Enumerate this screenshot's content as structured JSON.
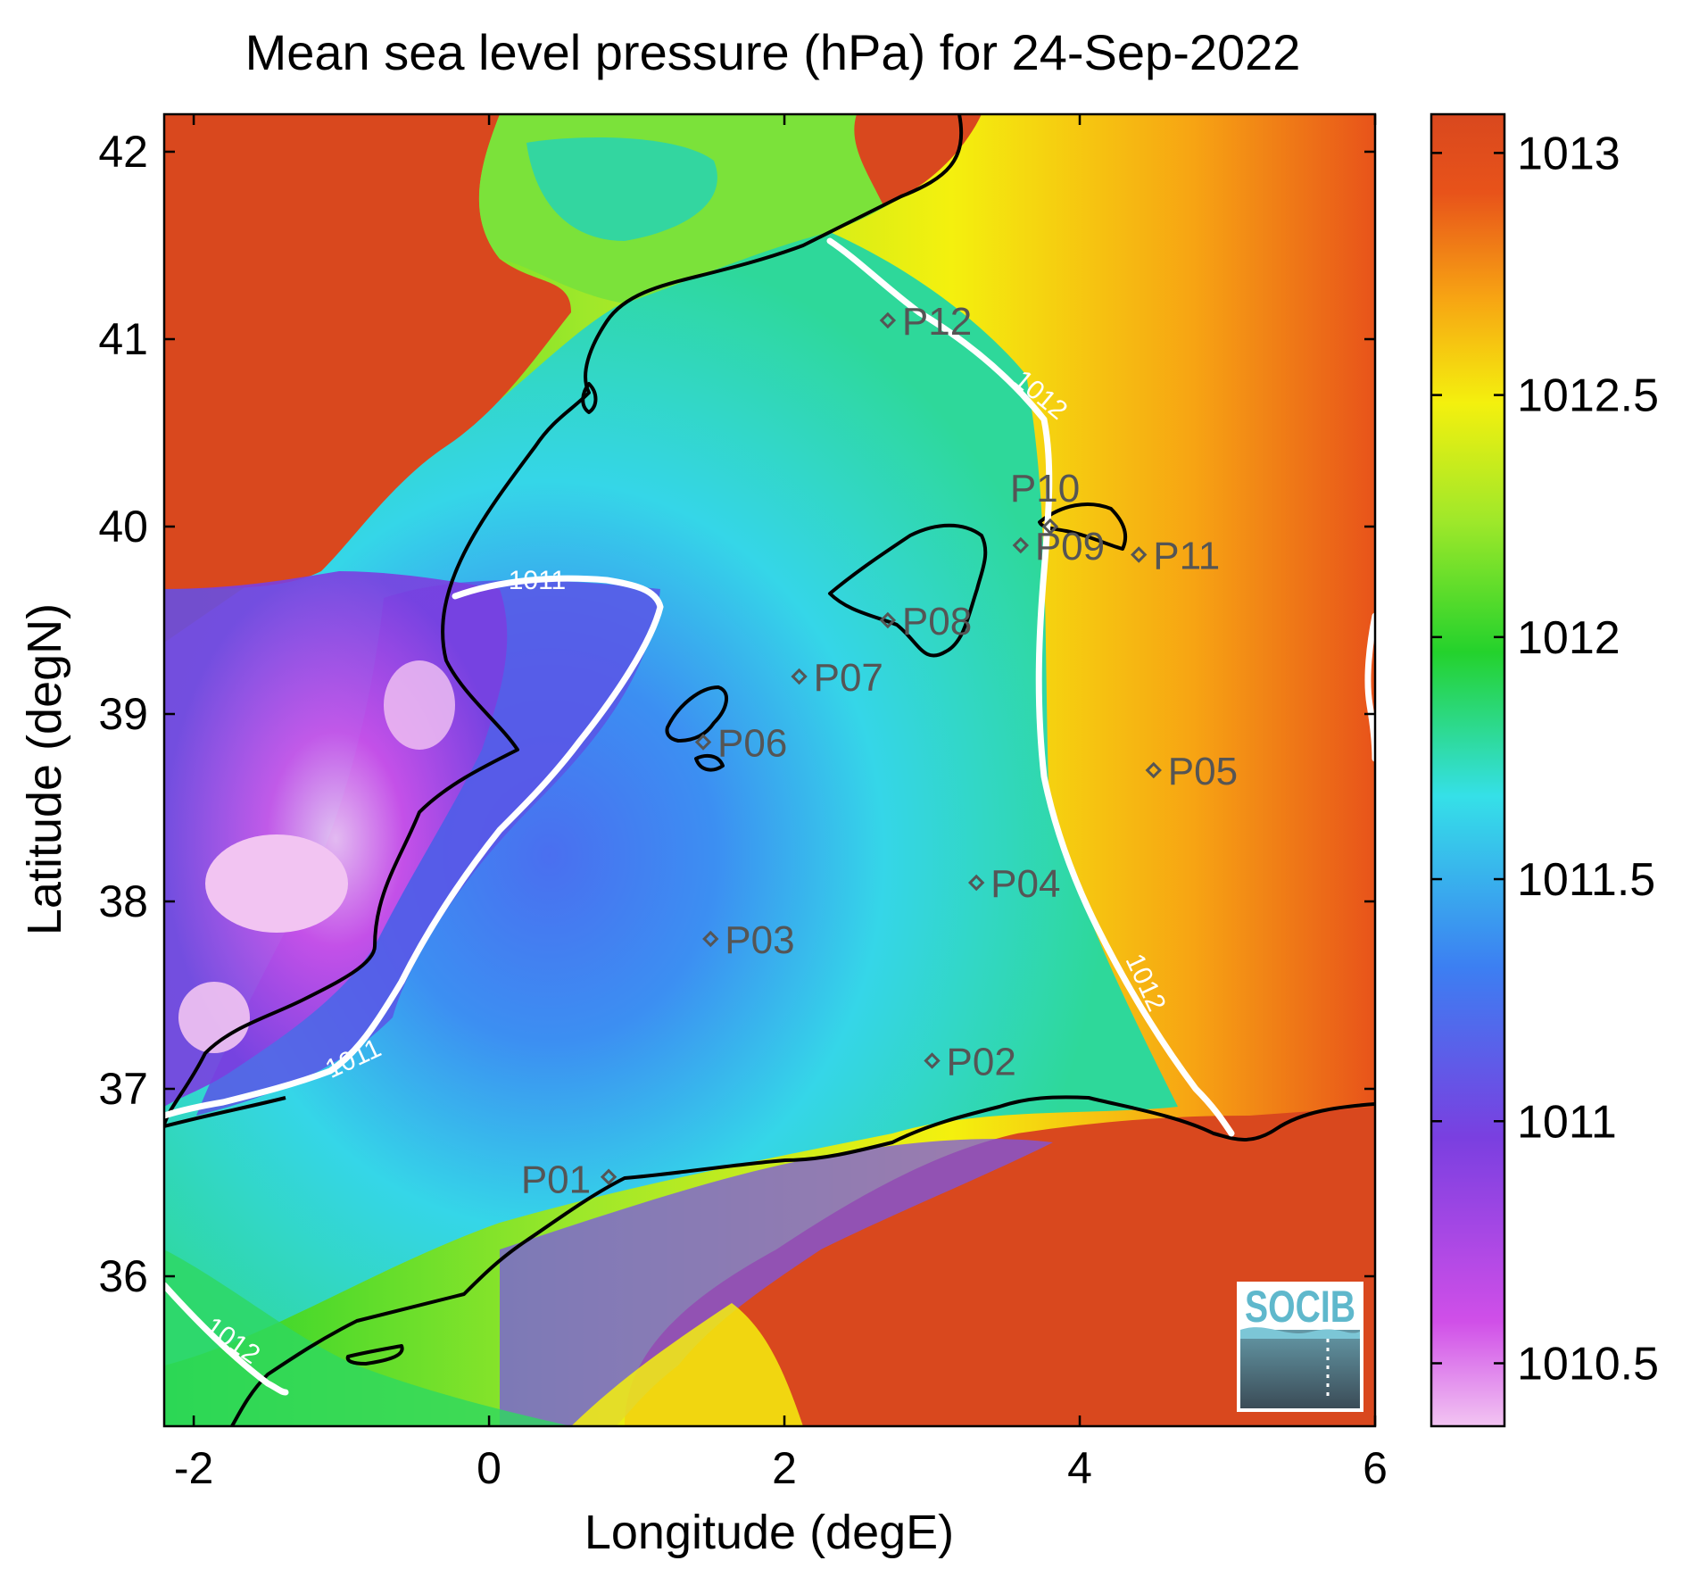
{
  "title": "Mean sea level pressure (hPa) for 24-Sep-2022",
  "x_axis": {
    "label": "Longitude (degE)",
    "range": [
      -2.2,
      6.0
    ],
    "ticks": [
      -2,
      0,
      2,
      4,
      6
    ],
    "tick_labels": [
      "-2",
      "0",
      "2",
      "4",
      "6"
    ]
  },
  "y_axis": {
    "label": "Latitude (degN)",
    "range": [
      35.2,
      42.2
    ],
    "ticks": [
      36,
      37,
      38,
      39,
      40,
      41,
      42
    ],
    "tick_labels": [
      "36",
      "37",
      "38",
      "39",
      "40",
      "41",
      "42"
    ]
  },
  "colorbar": {
    "range": [
      1010.37,
      1013.08
    ],
    "ticks": [
      1010.5,
      1011,
      1011.5,
      1012,
      1012.5,
      1013
    ],
    "tick_labels": [
      "1010.5",
      "1011",
      "1011.5",
      "1012",
      "1012.5",
      "1013"
    ],
    "colors": [
      "#f2c4f2",
      "#d04fe8",
      "#7a3fe0",
      "#3c7ff2",
      "#35e0e8",
      "#24d22c",
      "#9fe82a",
      "#f4f00e",
      "#f7a413",
      "#e8531a",
      "#d9481e"
    ]
  },
  "stations": [
    {
      "id": "P01",
      "lon": 0.81,
      "lat": 36.53
    },
    {
      "id": "P02",
      "lon": 3.0,
      "lat": 37.15
    },
    {
      "id": "P03",
      "lon": 1.5,
      "lat": 37.8
    },
    {
      "id": "P04",
      "lon": 3.3,
      "lat": 38.1
    },
    {
      "id": "P05",
      "lon": 4.5,
      "lat": 38.7
    },
    {
      "id": "P06",
      "lon": 1.45,
      "lat": 38.85
    },
    {
      "id": "P07",
      "lon": 2.1,
      "lat": 39.2
    },
    {
      "id": "P08",
      "lon": 2.7,
      "lat": 39.5
    },
    {
      "id": "P09",
      "lon": 3.6,
      "lat": 39.9
    },
    {
      "id": "P10",
      "lon": 3.8,
      "lat": 40.0
    },
    {
      "id": "P11",
      "lon": 4.4,
      "lat": 39.85
    },
    {
      "id": "P12",
      "lon": 2.7,
      "lat": 41.1
    }
  ],
  "contour_labels": [
    "1011",
    "1011",
    "1012",
    "1012",
    "1012"
  ],
  "logo": {
    "text": "SOCIB"
  },
  "chart_data": {
    "type": "heatmap",
    "title": "Mean sea level pressure (hPa) for 24-Sep-2022",
    "xlabel": "Longitude (degE)",
    "ylabel": "Latitude (degN)",
    "xlim": [
      -2.2,
      6.0
    ],
    "ylim": [
      35.2,
      42.2
    ],
    "value_range": [
      1010.37,
      1013.08
    ],
    "contour_levels": [
      1011,
      1012
    ],
    "grid": false
  }
}
